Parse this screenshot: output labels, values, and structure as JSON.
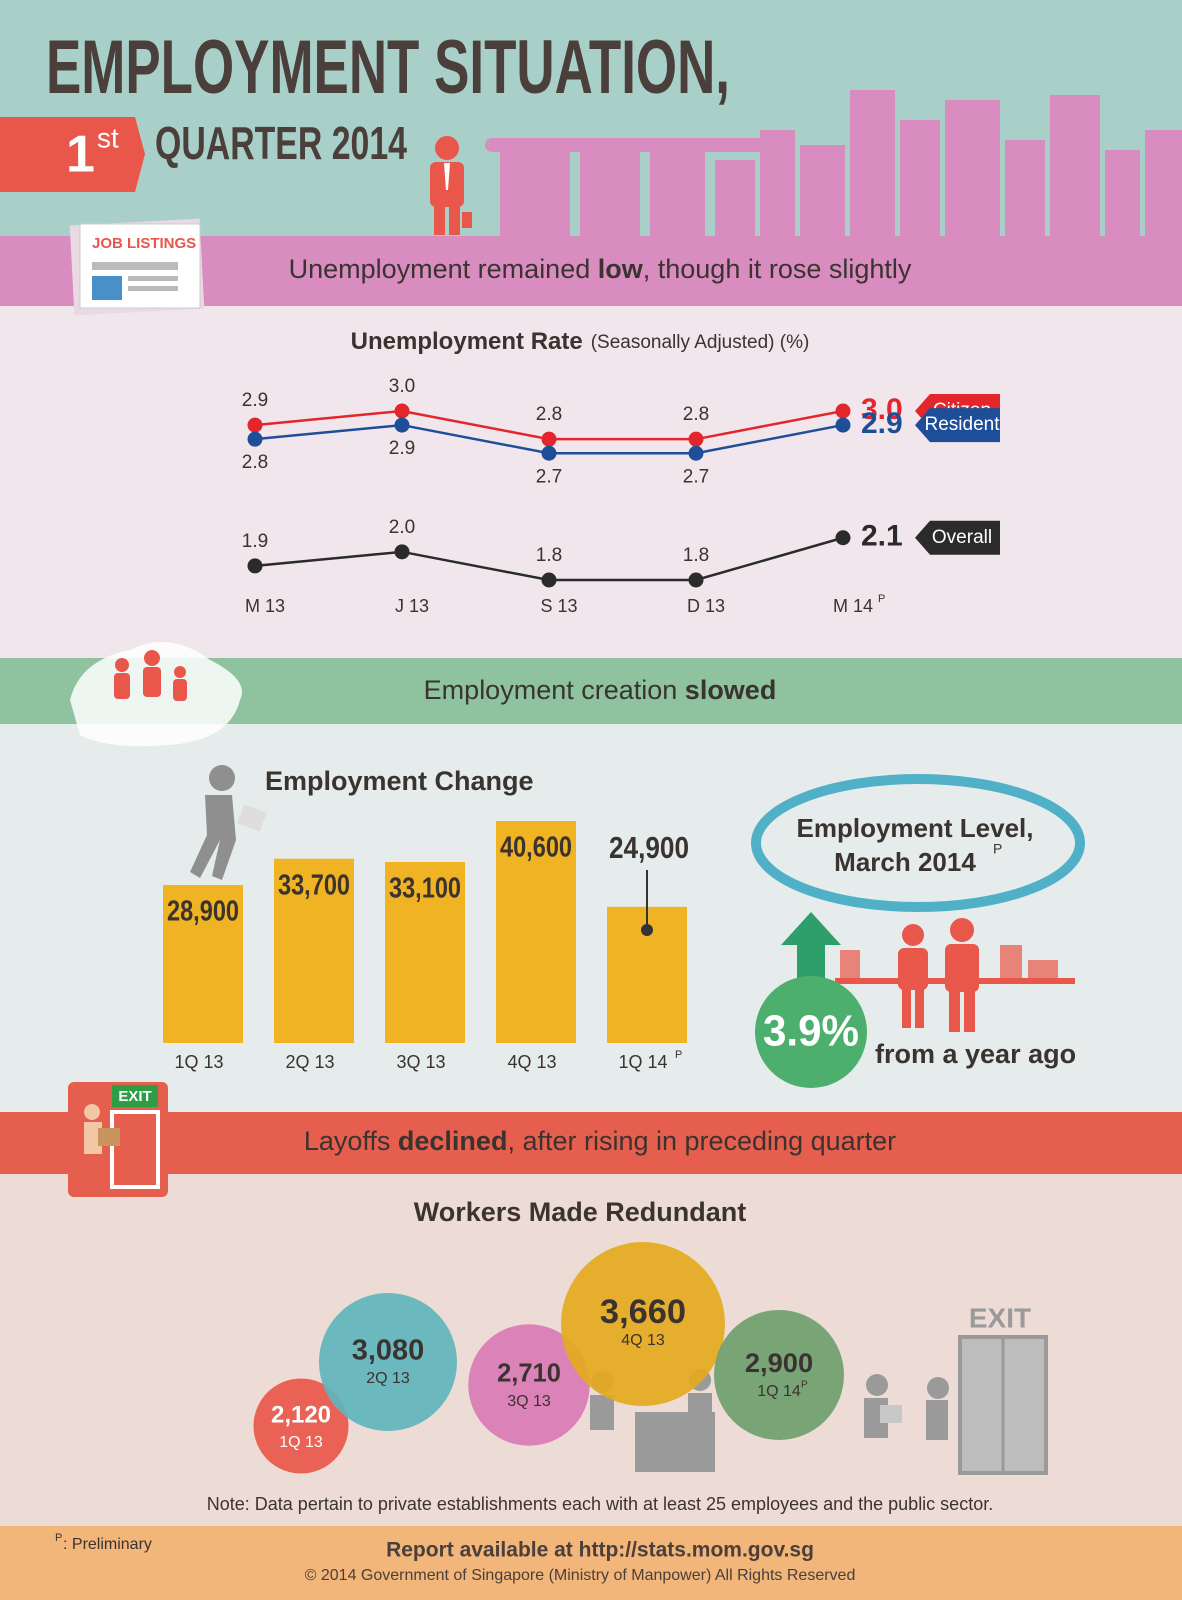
{
  "header": {
    "title": "EMPLOYMENT SITUATION,",
    "ordinal": "1",
    "ordinal_suffix": "st",
    "subtitle": "QUARTER 2014"
  },
  "icons": {
    "job_listings": "JOB LISTINGS",
    "exit_sign": "EXIT",
    "exit_door": "EXIT"
  },
  "banners": [
    {
      "before": "Unemployment remained ",
      "bold": "low",
      "after": ", though it rose slightly"
    },
    {
      "before": "Employment creation ",
      "bold": "slowed",
      "after": ""
    },
    {
      "before": "Layoffs ",
      "bold": "declined",
      "after": ", after rising in preceding quarter"
    }
  ],
  "chart_data": [
    {
      "type": "line",
      "title": "Unemployment Rate",
      "subtitle": "(Seasonally Adjusted) (%)",
      "categories": [
        "M 13",
        "J 13",
        "S 13",
        "D 13",
        "M 14"
      ],
      "series": [
        {
          "name": "Citizen",
          "color": "#e3262b",
          "values": [
            2.9,
            3.0,
            2.8,
            2.8,
            3.0
          ],
          "value_labels": [
            "2.9",
            "3.0",
            "2.8",
            "2.8",
            "3.0"
          ]
        },
        {
          "name": "Resident",
          "color": "#1f4e99",
          "values": [
            2.8,
            2.9,
            2.7,
            2.7,
            2.9
          ],
          "value_labels": [
            "2.8",
            "2.9",
            "2.7",
            "2.7",
            "2.9"
          ]
        },
        {
          "name": "Overall",
          "color": "#2b2b2b",
          "values": [
            1.9,
            2.0,
            1.8,
            1.8,
            2.1
          ],
          "value_labels": [
            "1.9",
            "2.0",
            "1.8",
            "1.8",
            "2.1"
          ]
        }
      ]
    },
    {
      "type": "bar",
      "title": "Employment Change",
      "categories": [
        "1Q 13",
        "2Q 13",
        "3Q 13",
        "4Q 13",
        "1Q 14"
      ],
      "values": [
        28900,
        33700,
        33100,
        40600,
        24900
      ],
      "value_labels": [
        "28,900",
        "33,700",
        "33,100",
        "40,600",
        "24,900"
      ],
      "color": "#f0b323"
    },
    {
      "type": "bubble",
      "title": "Workers Made Redundant",
      "categories": [
        "1Q 13",
        "2Q 13",
        "3Q 13",
        "4Q 13",
        "1Q 14"
      ],
      "values": [
        2120,
        3080,
        2710,
        3660,
        2900
      ],
      "value_labels": [
        "2,120",
        "3,080",
        "2,710",
        "3,660",
        "2,900"
      ],
      "colors": [
        "#e8574a",
        "#5fb5bd",
        "#d97ab5",
        "#e5a91e",
        "#6f9e6d"
      ]
    }
  ],
  "employment_level": {
    "title_line1": "Employment Level,",
    "title_line2": "March 2014",
    "change": "3.9%",
    "change_text": "from a year ago"
  },
  "note": "Note: Data pertain to private establishments each with at least 25 employees and the public sector.",
  "footnote": {
    "marker": "P",
    "text": ": Preliminary"
  },
  "footer": {
    "report": "Report available at http://stats.mom.gov.sg",
    "copyright": "© 2014 Government of Singapore (Ministry of Manpower)  All Rights Reserved"
  }
}
